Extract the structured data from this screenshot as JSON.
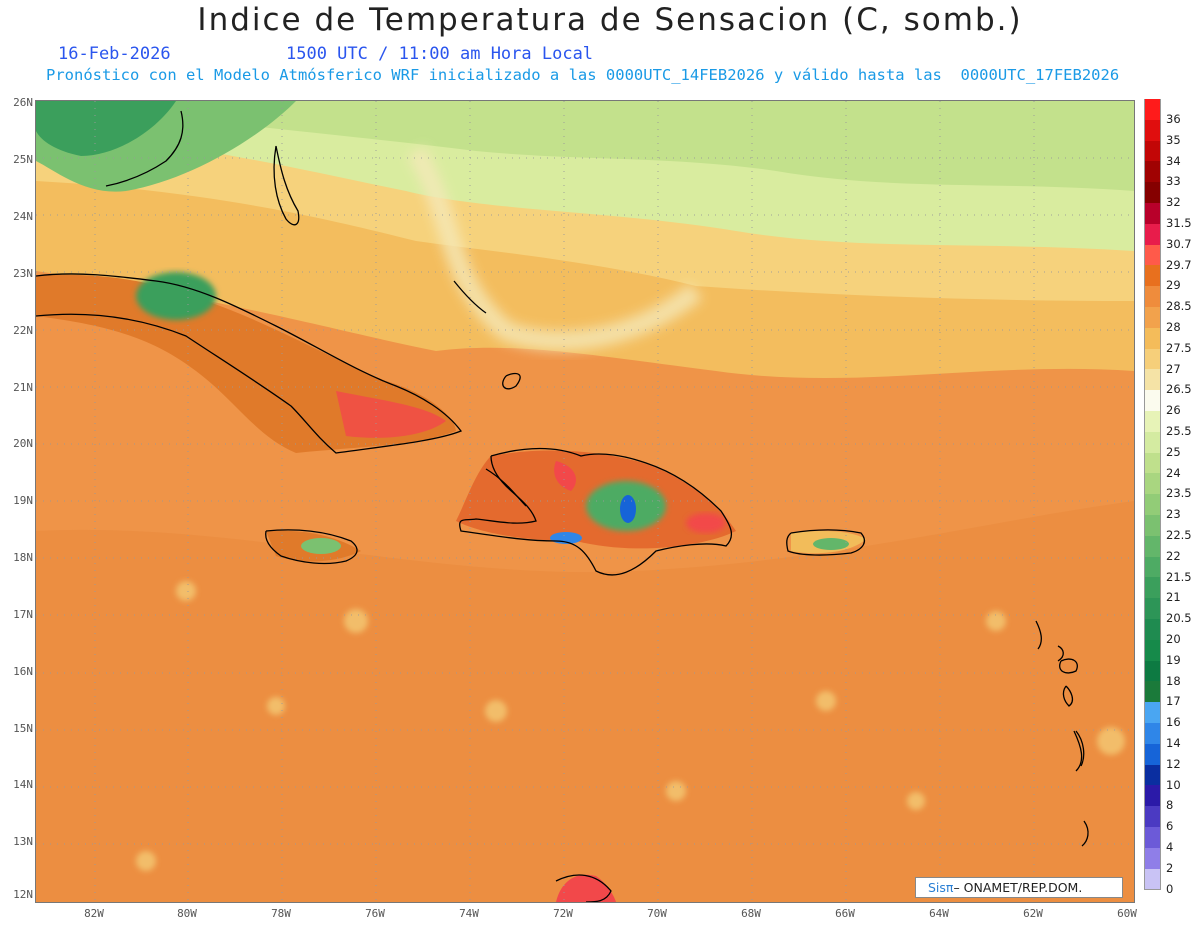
{
  "title": "Indice de Temperatura de Sensacion (C, somb.)",
  "date": "16-Feb-2026",
  "time": "1500 UTC / 11:00 am Hora Local",
  "subtitle": "Pronóstico con el Modelo Atmósferico WRF inicializado a las 0000UTC_14FEB2026 y válido hasta las  0000UTC_17FEB2026",
  "lat_labels": [
    "26N",
    "25N",
    "24N",
    "23N",
    "22N",
    "21N",
    "20N",
    "19N",
    "18N",
    "17N",
    "16N",
    "15N",
    "14N",
    "13N",
    "12N"
  ],
  "lon_labels": [
    "82W",
    "80W",
    "78W",
    "76W",
    "74W",
    "72W",
    "70W",
    "68W",
    "66W",
    "64W",
    "62W",
    "60W"
  ],
  "legend": {
    "levels": [
      "36",
      "35",
      "34",
      "33",
      "32",
      "31.5",
      "30.7",
      "29.7",
      "29",
      "28.5",
      "28",
      "27.5",
      "27",
      "26.5",
      "26",
      "25.5",
      "25",
      "24",
      "23.5",
      "23",
      "22.5",
      "22",
      "21.5",
      "21",
      "20.5",
      "20",
      "19",
      "18",
      "17",
      "16",
      "14",
      "12",
      "10",
      "8",
      "6",
      "4",
      "2",
      "0"
    ],
    "colors": [
      "#ff1b1b",
      "#e00e0e",
      "#c20606",
      "#a00202",
      "#850000",
      "#b8002a",
      "#e81c4b",
      "#ff5a4a",
      "#e8701e",
      "#ef8c3c",
      "#f2a24c",
      "#f4bc5a",
      "#f6cf7a",
      "#f5e3a6",
      "#fbfbee",
      "#e7f3b7",
      "#d4eba1",
      "#bfe08c",
      "#a9d680",
      "#92cc77",
      "#7bc170",
      "#63b66a",
      "#4eab64",
      "#3b9f5c",
      "#2d9557",
      "#1f8b50",
      "#168a4a",
      "#0d7a42",
      "#1b7a3a",
      "#4aa6f2",
      "#2f86e8",
      "#1664d8",
      "#0a2ea0",
      "#2b1aa8",
      "#4b3ac2",
      "#6c5ad8",
      "#8f7ee8",
      "#c9c3f5"
    ]
  },
  "credit": {
    "brand": "Sisπ",
    "text": " – ONAMET/REP.DOM."
  },
  "colors": {
    "title": "#222222",
    "date": "#2a55ee",
    "subtitle": "#1a9ae6",
    "coast": "#000000"
  }
}
